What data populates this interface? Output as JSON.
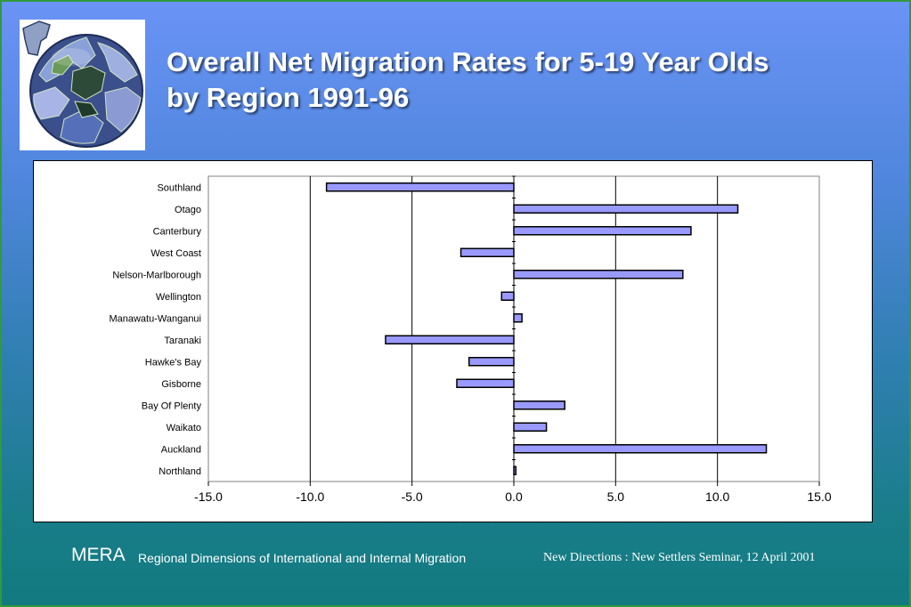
{
  "slide": {
    "title_line1": "Overall Net Migration Rates for 5-19 Year Olds",
    "title_line2": "by Region 1991-96",
    "footer_brand": "MERA",
    "footer_subtitle": "Regional Dimensions of International and Internal Migration",
    "footer_event": "New Directions : New Settlers Seminar, 12 April 2001"
  },
  "logo": {
    "icon": "globe-puzzle-icon"
  },
  "colors": {
    "bar_fill": "#9999ff",
    "bar_stroke": "#000000",
    "slide_top": "#6a93f6",
    "slide_bottom": "#117a7f"
  },
  "chart_data": {
    "type": "bar",
    "orientation": "horizontal",
    "categories": [
      "Southland",
      "Otago",
      "Canterbury",
      "West Coast",
      "Nelson-Marlborough",
      "Wellington",
      "Manawatu-Wanganui",
      "Taranaki",
      "Hawke's Bay",
      "Gisborne",
      "Bay Of Plenty",
      "Waikato",
      "Auckland",
      "Northland"
    ],
    "values": [
      -9.2,
      11.0,
      8.7,
      -2.6,
      8.3,
      -0.6,
      0.4,
      -6.3,
      -2.2,
      -2.8,
      2.5,
      1.6,
      12.4,
      0.1
    ],
    "xlim": [
      -15.0,
      15.0
    ],
    "xticks": [
      "-15.0",
      "-10.0",
      "-5.0",
      "0.0",
      "5.0",
      "10.0",
      "15.0"
    ],
    "grid": "vertical",
    "legend": "none"
  }
}
